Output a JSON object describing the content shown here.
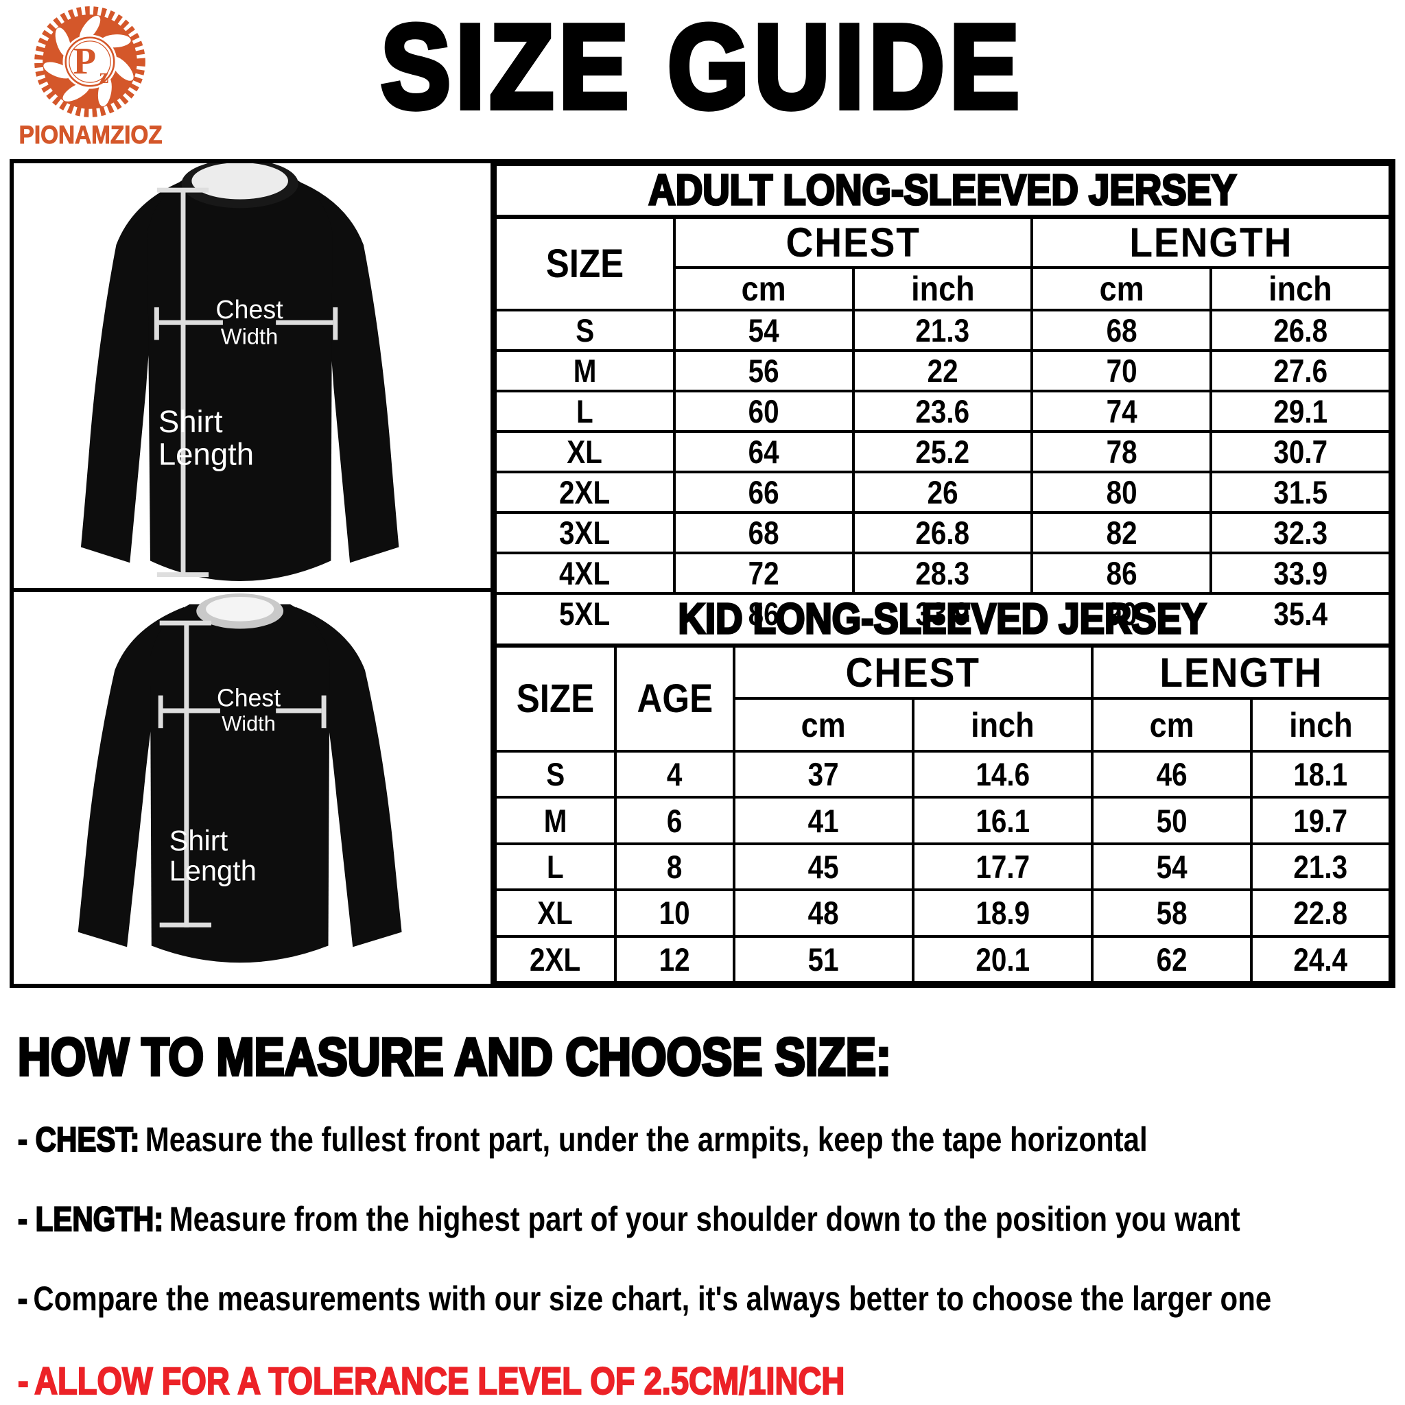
{
  "colors": {
    "accent_orange": "#d4572a",
    "alert_red": "#ec2227",
    "shirt_fill": "#0d0d0d",
    "measure_line": "#dedede"
  },
  "brand": {
    "name": "PIONAMZIOZ",
    "monogram_p": "P",
    "monogram_z": "z"
  },
  "page_title": "SIZE GUIDE",
  "measure_labels": {
    "chest_line1": "Chest",
    "chest_line2": "Width",
    "length_line1": "Shirt",
    "length_line2": "Length"
  },
  "adult_table": {
    "title": "ADULT LONG-SLEEVED JERSEY",
    "col_size": "SIZE",
    "col_chest": "CHEST",
    "col_length": "LENGTH",
    "unit_cm": "cm",
    "unit_inch": "inch",
    "rows": [
      [
        "S",
        "54",
        "21.3",
        "68",
        "26.8"
      ],
      [
        "M",
        "56",
        "22",
        "70",
        "27.6"
      ],
      [
        "L",
        "60",
        "23.6",
        "74",
        "29.1"
      ],
      [
        "XL",
        "64",
        "25.2",
        "78",
        "30.7"
      ],
      [
        "2XL",
        "66",
        "26",
        "80",
        "31.5"
      ],
      [
        "3XL",
        "68",
        "26.8",
        "82",
        "32.3"
      ],
      [
        "4XL",
        "72",
        "28.3",
        "86",
        "33.9"
      ],
      [
        "5XL",
        "86",
        "33.9",
        "90",
        "35.4"
      ]
    ]
  },
  "kid_table": {
    "title": "KID LONG-SLEEVED JERSEY",
    "col_size": "SIZE",
    "col_age": "AGE",
    "col_chest": "CHEST",
    "col_length": "LENGTH",
    "unit_cm": "cm",
    "unit_inch": "inch",
    "rows": [
      [
        "S",
        "4",
        "37",
        "14.6",
        "46",
        "18.1"
      ],
      [
        "M",
        "6",
        "41",
        "16.1",
        "50",
        "19.7"
      ],
      [
        "L",
        "8",
        "45",
        "17.7",
        "54",
        "21.3"
      ],
      [
        "XL",
        "10",
        "48",
        "18.9",
        "58",
        "22.8"
      ],
      [
        "2XL",
        "12",
        "51",
        "20.1",
        "62",
        "24.4"
      ]
    ]
  },
  "instructions": {
    "heading": "HOW TO MEASURE AND CHOOSE SIZE:",
    "items": [
      {
        "label": "- CHEST:",
        "text": "Measure the fullest front part, under the armpits, keep the tape horizontal",
        "emphasis": "normal"
      },
      {
        "label": "- LENGTH:",
        "text": "Measure from the highest part of your shoulder down to the position you want",
        "emphasis": "normal"
      },
      {
        "label": "-",
        "text": "Compare the measurements with our size chart, it's always better to choose the larger one",
        "emphasis": "normal"
      },
      {
        "label": "-",
        "text": "ALLOW FOR A TOLERANCE LEVEL OF 2.5CM/1INCH",
        "emphasis": "red"
      }
    ]
  }
}
